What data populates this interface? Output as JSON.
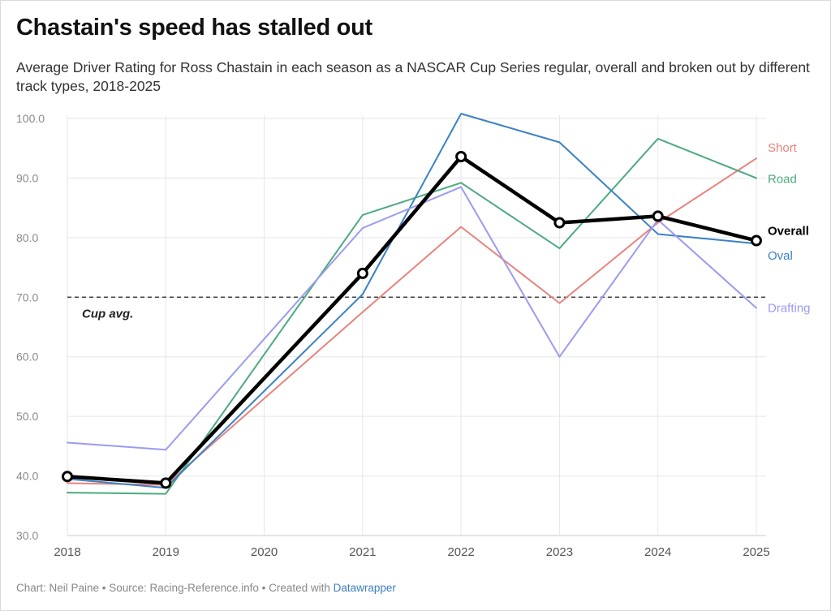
{
  "title": "Chastain's speed has stalled out",
  "subtitle": "Average Driver Rating for Ross Chastain in each season as a NASCAR Cup Series regular, overall and broken out by different track types, 2018-2025",
  "footer": {
    "credit": "Chart: Neil Paine • Source: Racing-Reference.info • Created with ",
    "link_text": "Datawrapper"
  },
  "chart_data": {
    "type": "line",
    "x": [
      "2018",
      "2019",
      "2020",
      "2021",
      "2022",
      "2023",
      "2024",
      "2025"
    ],
    "ylim": [
      30,
      100
    ],
    "yticks": [
      "30.0",
      "40.0",
      "50.0",
      "60.0",
      "70.0",
      "80.0",
      "90.0",
      "100.0"
    ],
    "grid": true,
    "reference_line": {
      "value": 70,
      "label": "Cup avg."
    },
    "series": [
      {
        "name": "Short",
        "color": "#e8837d",
        "values": [
          38.8,
          38.5,
          null,
          67.5,
          81.8,
          69.0,
          82.5,
          93.3
        ]
      },
      {
        "name": "Road",
        "color": "#4daa80",
        "values": [
          37.2,
          37.0,
          null,
          83.8,
          89.2,
          78.2,
          96.6,
          90.0
        ]
      },
      {
        "name": "Oval",
        "color": "#3a82c4",
        "values": [
          39.5,
          38.0,
          null,
          70.5,
          100.8,
          96.0,
          80.6,
          79.0
        ]
      },
      {
        "name": "Drafting",
        "color": "#9b9bf0",
        "values": [
          45.6,
          44.4,
          null,
          81.6,
          88.5,
          60.0,
          83.0,
          68.2
        ]
      },
      {
        "name": "Overall",
        "color": "#000000",
        "values": [
          39.9,
          38.8,
          null,
          74.0,
          93.6,
          82.5,
          83.6,
          79.5
        ]
      }
    ]
  }
}
